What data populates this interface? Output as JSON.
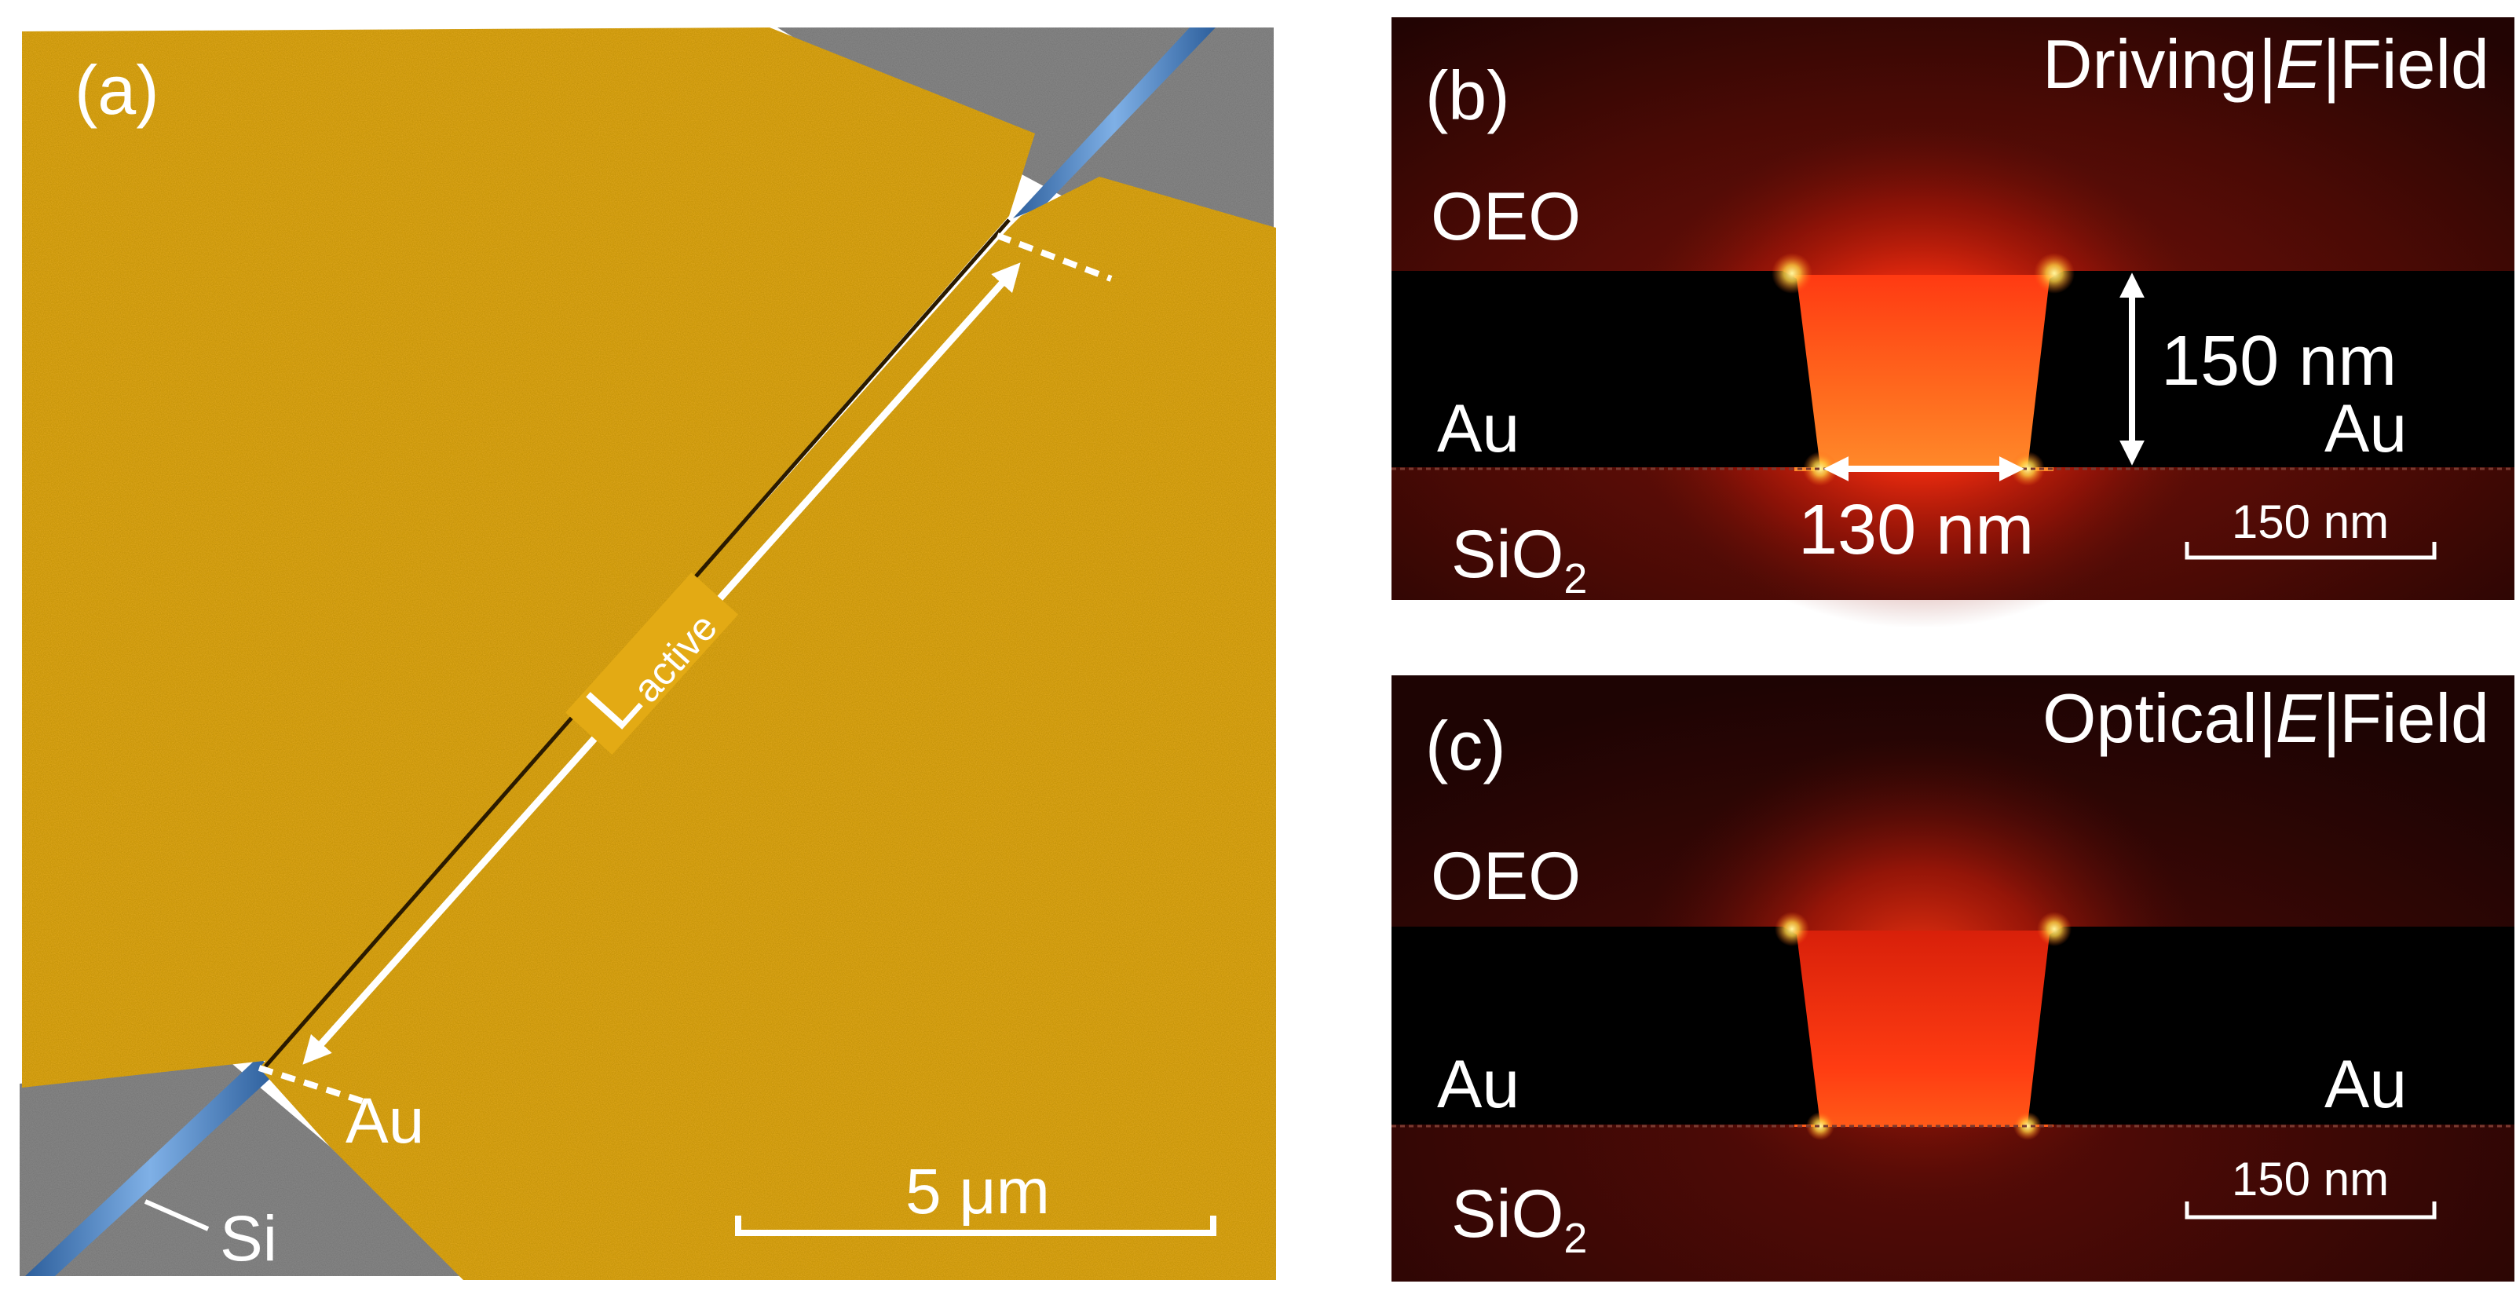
{
  "panel_a": {
    "panel_label": "(a)",
    "length_label_main": "L",
    "length_label_sub": "active",
    "material_au": "Au",
    "material_si": "Si",
    "scale_bar_label": "5 μm",
    "colors": {
      "gold": "#e3aa14",
      "silicon": "#4f86c6",
      "substrate": "#8a8a8a"
    }
  },
  "panel_b": {
    "panel_label": "(b)",
    "title_prefix": "Driving",
    "title_field_symbol": "|E|",
    "title_suffix": "Field",
    "layer_top": "OEO",
    "electrode_left": "Au",
    "electrode_right": "Au",
    "substrate": "SiO",
    "substrate_sub": "2",
    "thickness_label": "150 nm",
    "gap_label": "130 nm",
    "scale_bar_label": "150 nm"
  },
  "panel_c": {
    "panel_label": "(c)",
    "title_prefix": "Optical",
    "title_field_symbol": "|E|",
    "title_suffix": "Field",
    "layer_top": "OEO",
    "electrode_left": "Au",
    "electrode_right": "Au",
    "substrate": "SiO",
    "substrate_sub": "2",
    "scale_bar_label": "150 nm"
  }
}
